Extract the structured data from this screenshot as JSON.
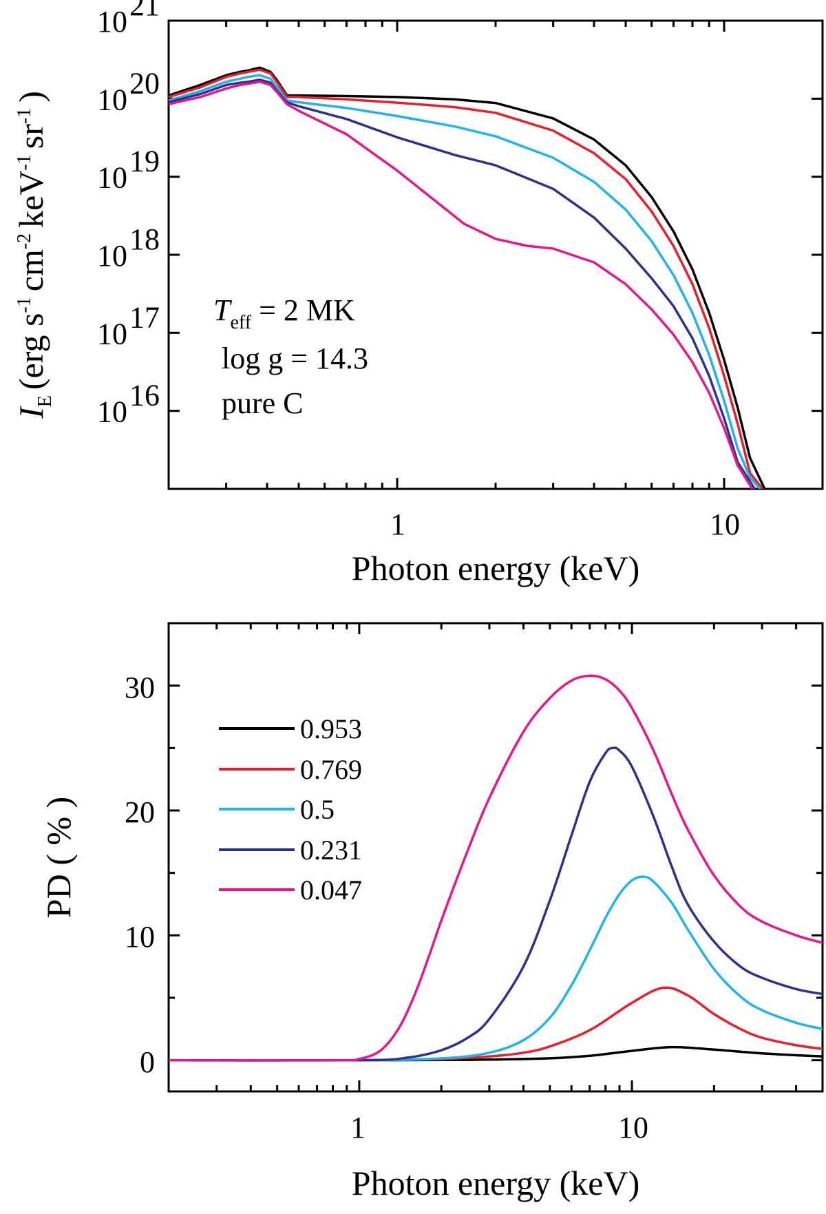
{
  "chart_data": [
    {
      "type": "line",
      "panel": "top",
      "xscale": "log",
      "yscale": "log",
      "xlim": [
        0.2,
        20
      ],
      "ylim": [
        1000000000000000.0,
        1e+21
      ],
      "xlabel": "Photon energy (keV)",
      "ylabel": {
        "symbol": "I",
        "subscript": "E",
        "units": "(erg s",
        "s_exp": "-1",
        "cm": "cm",
        "cm_exp": "-2",
        "kev": "keV",
        "kev_exp": "-1",
        "sr": "sr",
        "sr_exp": "-1",
        "close": ")"
      },
      "xticks": [
        {
          "value": 1,
          "label": "1"
        },
        {
          "value": 10,
          "label": "10"
        }
      ],
      "yticks": [
        {
          "value": 1e+16,
          "base": "10",
          "exp": "16"
        },
        {
          "value": 1e+17,
          "base": "10",
          "exp": "17"
        },
        {
          "value": 1e+18,
          "base": "10",
          "exp": "18"
        },
        {
          "value": 1e+19,
          "base": "10",
          "exp": "19"
        },
        {
          "value": 1e+20,
          "base": "10",
          "exp": "20"
        },
        {
          "value": 1e+21,
          "base": "10",
          "exp": "21"
        }
      ],
      "annotation": {
        "teff_symbol": "T",
        "teff_sub": "eff",
        "teff_value": " = 2 MK",
        "logg": "log g = 14.3",
        "composition": "pure C"
      },
      "series": [
        {
          "name": "0.953",
          "color": "#000000",
          "x": [
            0.2,
            0.25,
            0.3,
            0.33,
            0.35,
            0.38,
            0.41,
            0.43,
            0.46,
            0.5,
            0.7,
            1,
            1.5,
            2,
            3,
            4,
            5,
            6,
            7,
            8,
            9,
            10,
            11,
            12,
            13.3
          ],
          "y": [
            1.1e+20,
            1.5e+20,
            2e+20,
            2.2e+20,
            2.3e+20,
            2.5e+20,
            2.2e+20,
            1.7e+20,
            1.1e+20,
            1.1e+20,
            1.08e+20,
            1.05e+20,
            9.8e+19,
            8.8e+19,
            5.6e+19,
            3e+19,
            1.4e+19,
            5.5e+18,
            2e+18,
            6.5e+17,
            1.8e+17,
            4.5e+16,
            1.1e+16,
            2500000000000000.0,
            1000000000000000.0
          ]
        },
        {
          "name": "0.769",
          "color": "#e8202a",
          "x": [
            0.2,
            0.25,
            0.3,
            0.33,
            0.35,
            0.38,
            0.41,
            0.43,
            0.46,
            0.5,
            0.7,
            1,
            1.5,
            2,
            3,
            4,
            5,
            6,
            7,
            8,
            9,
            10,
            11,
            12,
            13.1
          ],
          "y": [
            1.05e+20,
            1.4e+20,
            1.9e+20,
            2.1e+20,
            2.2e+20,
            2.35e+20,
            2.1e+20,
            1.6e+20,
            1.05e+20,
            1.05e+20,
            9.8e+19,
            8.9e+19,
            7.8e+19,
            6.6e+19,
            3.9e+19,
            2e+19,
            9.3e+18,
            3.6e+18,
            1.3e+18,
            4.2e+17,
            1.15e+17,
            2.8e+16,
            6800000000000000.0,
            1600000000000000.0,
            1000000000000000.0
          ]
        },
        {
          "name": "0.5",
          "color": "#20b4ec",
          "x": [
            0.2,
            0.25,
            0.3,
            0.33,
            0.35,
            0.38,
            0.41,
            0.43,
            0.46,
            0.5,
            0.7,
            1,
            1.5,
            2,
            3,
            4,
            5,
            6,
            7,
            8,
            9,
            10,
            11,
            12,
            12.9
          ],
          "y": [
            9.5e+19,
            1.25e+20,
            1.65e+20,
            1.8e+20,
            1.9e+20,
            2e+20,
            1.8e+20,
            1.4e+20,
            9.5e+19,
            9e+19,
            7.6e+19,
            6e+19,
            4.4e+19,
            3.3e+19,
            1.75e+19,
            8.6e+18,
            3.8e+18,
            1.5e+18,
            5.5e+17,
            1.8e+17,
            5.2e+16,
            1.35e+16,
            3300000000000000.0,
            1400000000000000.0,
            1000000000000000.0
          ]
        },
        {
          "name": "0.231",
          "color": "#2e3192",
          "x": [
            0.2,
            0.25,
            0.3,
            0.33,
            0.35,
            0.38,
            0.41,
            0.43,
            0.46,
            0.5,
            0.7,
            1,
            1.5,
            2,
            3,
            4,
            5,
            6,
            7,
            8,
            9,
            10,
            11,
            12.4
          ],
          "y": [
            9e+19,
            1.15e+20,
            1.5e+20,
            1.6e+20,
            1.65e+20,
            1.75e+20,
            1.6e+20,
            1.25e+20,
            9e+19,
            8e+19,
            5.5e+19,
            3.2e+19,
            1.9e+19,
            1.4e+19,
            7e+18,
            3e+18,
            1.2e+18,
            5e+17,
            2.2e+17,
            8.5e+16,
            2.8e+16,
            8000000000000000.0,
            2200000000000000.0,
            1000000000000000.0
          ]
        },
        {
          "name": "0.047",
          "color": "#e6178e",
          "x": [
            0.2,
            0.25,
            0.3,
            0.33,
            0.35,
            0.38,
            0.41,
            0.43,
            0.46,
            0.5,
            0.7,
            1,
            1.3,
            1.6,
            2,
            2.5,
            3,
            4,
            5,
            6,
            7,
            8,
            9,
            10,
            11,
            12.2
          ],
          "y": [
            8.5e+19,
            1.05e+20,
            1.35e+20,
            1.5e+20,
            1.55e+20,
            1.65e+20,
            1.5e+20,
            1.2e+20,
            8.5e+19,
            7e+19,
            3.5e+19,
            1.2e+19,
            5e+18,
            2.5e+18,
            1.6e+18,
            1.3e+18,
            1.2e+18,
            8e+17,
            4.2e+17,
            2e+17,
            9.5e+16,
            4.2e+16,
            1.7e+16,
            6000000000000000.0,
            2000000000000000.0,
            1000000000000000.0
          ]
        }
      ]
    },
    {
      "type": "line",
      "panel": "bottom",
      "xscale": "log",
      "yscale": "linear",
      "xlim": [
        0.2,
        50
      ],
      "ylim": [
        -2.5,
        35
      ],
      "xlabel": "Photon energy (keV)",
      "ylabel": "PD ( % )",
      "xticks": [
        {
          "value": 1,
          "label": "1"
        },
        {
          "value": 10,
          "label": "10"
        }
      ],
      "yticks": [
        {
          "value": 0,
          "label": "0"
        },
        {
          "value": 10,
          "label": "10"
        },
        {
          "value": 20,
          "label": "20"
        },
        {
          "value": 30,
          "label": "30"
        }
      ],
      "legend": {
        "placement": "top-left",
        "entries": [
          "0.953",
          "0.769",
          "0.5",
          "0.231",
          "0.047"
        ]
      },
      "series": [
        {
          "name": "0.953",
          "color": "#000000",
          "x": [
            0.2,
            1,
            2,
            3,
            5,
            7,
            10,
            14,
            20,
            30,
            50
          ],
          "y": [
            0,
            0,
            0.02,
            0.05,
            0.15,
            0.35,
            0.75,
            1.05,
            0.85,
            0.55,
            0.3
          ]
        },
        {
          "name": "0.769",
          "color": "#e8202a",
          "x": [
            0.2,
            1,
            2,
            3,
            4,
            5,
            7,
            10,
            13,
            16,
            20,
            25,
            30,
            40,
            50
          ],
          "y": [
            0,
            0,
            0.1,
            0.3,
            0.6,
            1.1,
            2.4,
            4.6,
            5.8,
            5.2,
            3.7,
            2.5,
            1.8,
            1.2,
            0.9
          ]
        },
        {
          "name": "0.5",
          "color": "#20b4ec",
          "x": [
            0.2,
            1,
            2,
            3,
            4,
            5,
            6,
            7,
            8,
            9,
            10,
            11,
            12,
            14,
            16,
            20,
            25,
            30,
            40,
            50
          ],
          "y": [
            0,
            0,
            0.15,
            0.6,
            1.6,
            3.4,
            6.0,
            8.8,
            11.4,
            13.3,
            14.4,
            14.7,
            14.3,
            12.6,
            10.5,
            7.3,
            5.1,
            4.0,
            3.0,
            2.5
          ]
        },
        {
          "name": "0.231",
          "color": "#2e3192",
          "x": [
            0.2,
            1,
            1.5,
            2,
            2.5,
            3,
            4,
            5,
            6,
            7,
            8,
            8.5,
            9,
            10,
            12,
            14,
            16,
            20,
            25,
            30,
            40,
            50
          ],
          "y": [
            0,
            0,
            0.2,
            0.8,
            1.8,
            3.3,
            7.5,
            12.8,
            18.0,
            22.3,
            24.6,
            25.0,
            24.8,
            23.5,
            19.5,
            15.5,
            12.5,
            9.5,
            7.5,
            6.6,
            5.7,
            5.3
          ]
        },
        {
          "name": "0.047",
          "color": "#e6178e",
          "x": [
            0.2,
            0.8,
            1,
            1.2,
            1.4,
            1.6,
            1.8,
            2,
            2.5,
            3,
            4,
            5,
            6,
            7,
            8,
            9,
            10,
            12,
            14,
            16,
            20,
            25,
            30,
            40,
            50
          ],
          "y": [
            0,
            0,
            0.1,
            0.8,
            2.6,
            5.3,
            8.3,
            11.2,
            16.8,
            21.0,
            26.3,
            29.0,
            30.4,
            30.8,
            30.5,
            29.6,
            28.2,
            24.8,
            21.3,
            18.5,
            14.8,
            12.3,
            11.1,
            10.0,
            9.4
          ]
        }
      ]
    }
  ]
}
